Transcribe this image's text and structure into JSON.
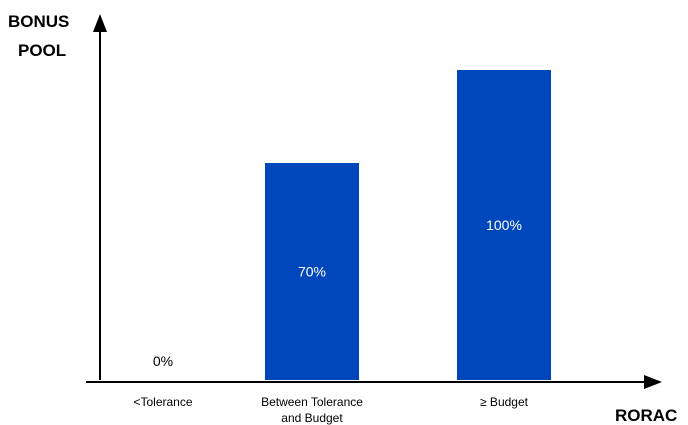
{
  "chart_data": {
    "type": "bar",
    "categories": [
      "<Tolerance",
      "Between Tolerance and Budget",
      "≥ Budget"
    ],
    "category_lines": [
      [
        "<Tolerance"
      ],
      [
        "Between Tolerance",
        "and Budget"
      ],
      [
        "≥ Budget"
      ]
    ],
    "values": [
      0,
      70,
      100
    ],
    "data_labels": [
      "0%",
      "70%",
      "100%"
    ],
    "ylabel_lines": [
      "BONUS",
      "POOL"
    ],
    "xlabel": "RORAC",
    "ylim": [
      0,
      100
    ],
    "grid": false,
    "legend": "none",
    "colors": {
      "bar": "#0047BB",
      "label_on_bar": "#ffffff",
      "label_default": "#000000",
      "axis": "#000000"
    }
  }
}
